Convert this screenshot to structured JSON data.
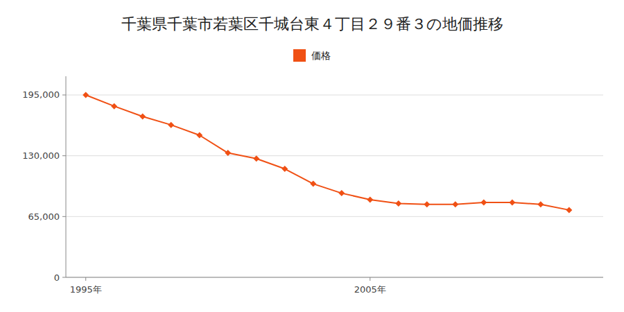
{
  "chart_data": {
    "type": "line",
    "title": "千葉県千葉市若葉区千城台東４丁目２９番３の地価推移",
    "x": [
      1995,
      1996,
      1997,
      1998,
      1999,
      2000,
      2001,
      2002,
      2003,
      2004,
      2005,
      2006,
      2007,
      2008,
      2009,
      2010,
      2011,
      2012
    ],
    "series": [
      {
        "name": "価格",
        "color": "#f05014",
        "marker": "diamond",
        "values": [
          195000,
          183000,
          172000,
          163000,
          152000,
          133000,
          127000,
          116000,
          100000,
          90000,
          83000,
          79000,
          78000,
          78000,
          80000,
          80000,
          78000,
          72000
        ]
      }
    ],
    "xlim": [
      1994.3,
      2013.2
    ],
    "xticks": [
      {
        "value": 1995,
        "label": "1995年"
      },
      {
        "value": 2005,
        "label": "2005年"
      }
    ],
    "ylim": [
      0,
      215000
    ],
    "yticks": [
      0,
      {
        "value": 65000,
        "label": "65,000"
      },
      {
        "value": 130000,
        "label": "130,000"
      },
      {
        "value": 195000,
        "label": "195,000"
      }
    ],
    "grid": true,
    "legend": "top"
  }
}
